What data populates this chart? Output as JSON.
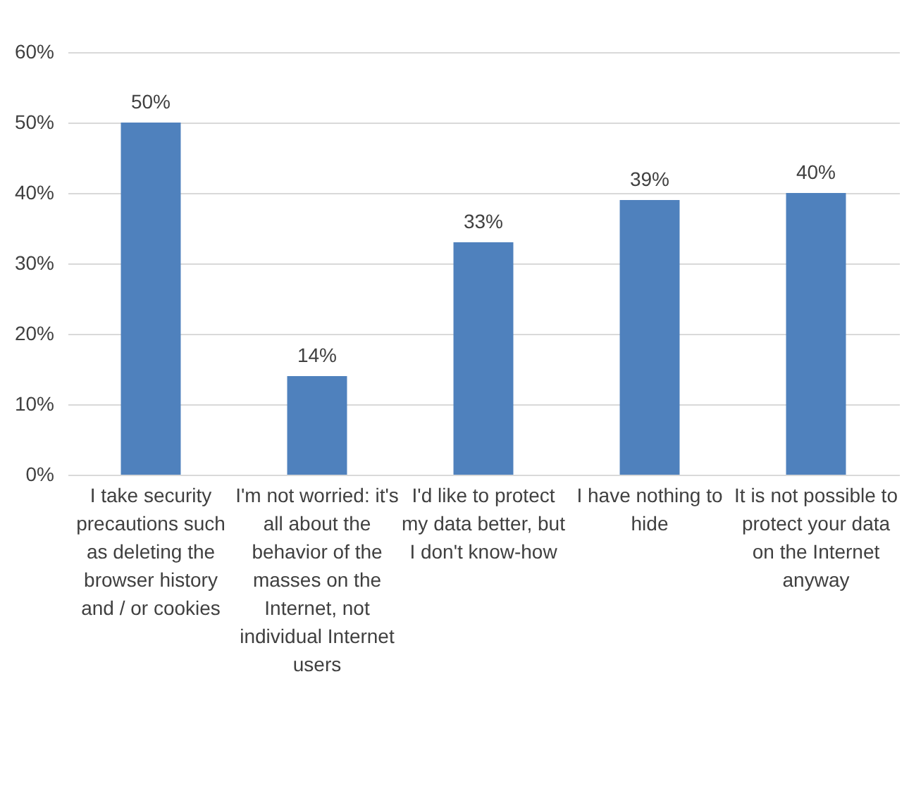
{
  "chart_data": {
    "type": "bar",
    "categories": [
      "I take security precautions such as deleting the browser history and / or cookies",
      "I'm not worried: it's all about the behavior of the masses on the Internet, not individual Internet users",
      "I'd like to protect my data better, but I don't know-how",
      "I have nothing to hide",
      "It is not possible to protect your data on the Internet anyway"
    ],
    "values": [
      50,
      14,
      33,
      39,
      40
    ],
    "value_labels": [
      "50%",
      "14%",
      "33%",
      "39%",
      "40%"
    ],
    "color": "#4f81bd",
    "ylim": [
      0,
      60
    ],
    "yticks": [
      {
        "value": 0,
        "label": "0%"
      },
      {
        "value": 10,
        "label": "10%"
      },
      {
        "value": 20,
        "label": "20%"
      },
      {
        "value": 30,
        "label": "30%"
      },
      {
        "value": 40,
        "label": "40%"
      },
      {
        "value": 50,
        "label": "50%"
      },
      {
        "value": 60,
        "label": "60%"
      }
    ],
    "grid": "y"
  }
}
